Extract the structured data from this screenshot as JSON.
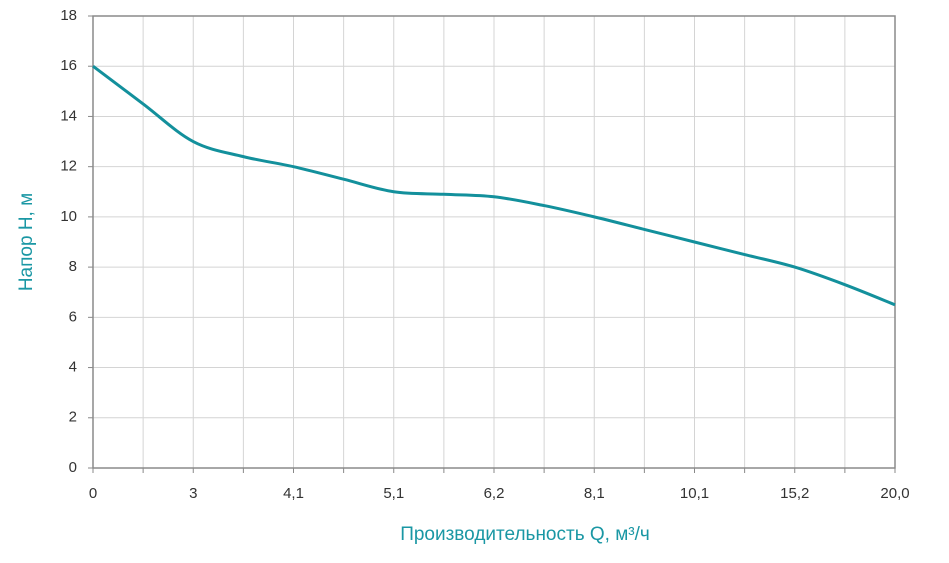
{
  "chart_data": {
    "type": "line",
    "x_label": "Производительность Q, м³/ч",
    "y_label": "Напор Н, м",
    "categories": [
      "0",
      null,
      "3",
      null,
      "4,1",
      null,
      "5,1",
      null,
      "6,2",
      null,
      "8,1",
      null,
      "10,1",
      null,
      "15,2",
      null,
      "20,0"
    ],
    "series": [
      {
        "name": "Напор",
        "color": "#13909c",
        "values": [
          16,
          14.5,
          13,
          12.4,
          12,
          11.5,
          11,
          10.9,
          10.8,
          10.45,
          10,
          9.5,
          9,
          8.5,
          8,
          7.3,
          6.5
        ]
      }
    ],
    "ylim": [
      0,
      18
    ],
    "yticks": [
      0,
      2,
      4,
      6,
      8,
      10,
      12,
      14,
      16,
      18
    ],
    "grid": true
  }
}
